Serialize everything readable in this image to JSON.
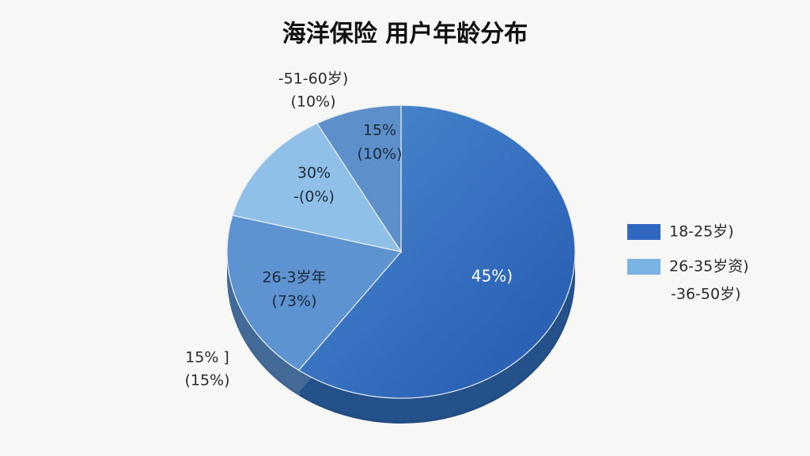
{
  "chart_data": {
    "type": "pie",
    "title": "海洋保险 用户年龄分布",
    "series": [
      {
        "values": [
          60,
          19,
          13,
          8
        ],
        "colors": [
          "#3470c0",
          "#5e93d2",
          "#90c0e8",
          "#5d8fcb"
        ]
      }
    ],
    "slice_labels": [
      [
        "45%)"
      ],
      [
        "26-3岁年",
        "(73%)"
      ],
      [
        "30%",
        "-(0%)"
      ],
      [
        "15%",
        "(10%)"
      ]
    ],
    "annotations": [
      [
        "-51-60岁)",
        "(10%)"
      ],
      [
        "15% ]",
        "(15%)"
      ]
    ],
    "legend": [
      {
        "label": "18-25岁)",
        "color": "#2f68c0"
      },
      {
        "label": "26-35岁资)",
        "color": "#7ab2e4"
      },
      {
        "label": "-36-50岁)"
      }
    ]
  }
}
